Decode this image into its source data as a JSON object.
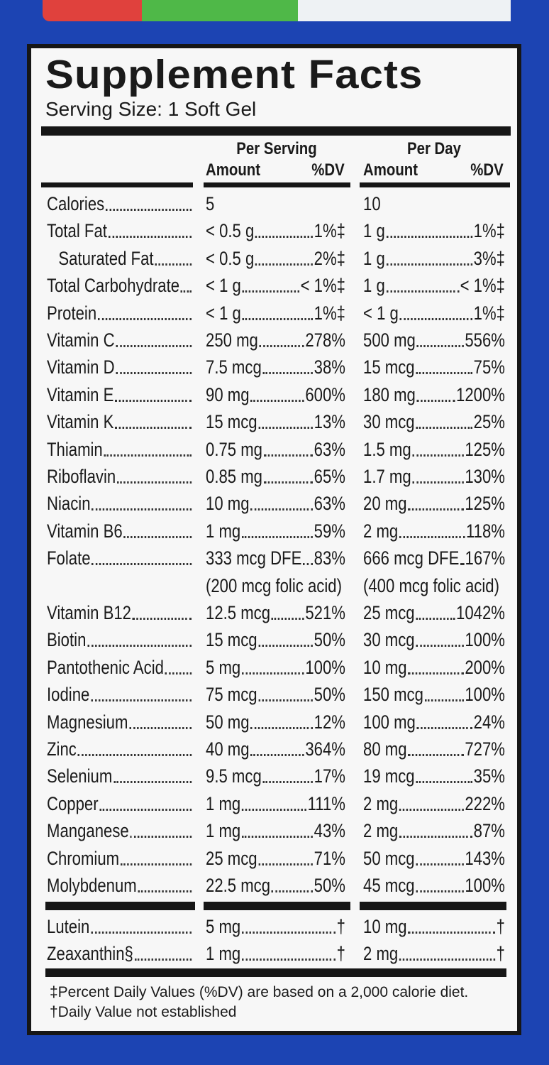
{
  "header": {
    "title": "Supplement Facts",
    "serving_size": "Serving Size: 1 Soft Gel"
  },
  "columns": {
    "per_serving": "Per Serving",
    "per_day": "Per Day",
    "serving_amount": "Amount",
    "serving_dv": "%DV",
    "day_amount": "Amount",
    "day_dv": "%DV"
  },
  "table": {
    "rows": [
      {
        "name": "Calories",
        "serving": {
          "amount": "5"
        },
        "day": {
          "amount": "10"
        }
      },
      {
        "name": "Total Fat",
        "serving": {
          "amount": "< 0.5 g",
          "dv": "1%‡"
        },
        "day": {
          "amount": "1 g",
          "dv": "1%‡"
        }
      },
      {
        "name": "Saturated Fat",
        "serving": {
          "amount": "< 0.5 g",
          "dv": "2%‡"
        },
        "day": {
          "amount": "1 g",
          "dv": "3%‡"
        }
      },
      {
        "name": "Total Carbohydrate",
        "serving": {
          "amount": "< 1 g",
          "dv": "< 1%‡"
        },
        "day": {
          "amount": "1 g",
          "dv": "< 1%‡"
        }
      },
      {
        "name": "Protein",
        "serving": {
          "amount": "< 1 g",
          "dv": "1%‡"
        },
        "day": {
          "amount": "< 1 g",
          "dv": "1%‡"
        }
      },
      {
        "name": "Vitamin C",
        "serving": {
          "amount": "250 mg",
          "dv": "278%"
        },
        "day": {
          "amount": "500 mg",
          "dv": "556%"
        }
      },
      {
        "name": "Vitamin D",
        "serving": {
          "amount": "7.5 mcg",
          "dv": "38%"
        },
        "day": {
          "amount": "15 mcg",
          "dv": "75%"
        }
      },
      {
        "name": "Vitamin E",
        "serving": {
          "amount": "90 mg",
          "dv": "600%"
        },
        "day": {
          "amount": "180 mg",
          "dv": "1200%"
        }
      },
      {
        "name": "Vitamin K",
        "serving": {
          "amount": "15 mcg",
          "dv": "13%"
        },
        "day": {
          "amount": "30 mcg",
          "dv": "25%"
        }
      },
      {
        "name": "Thiamin",
        "serving": {
          "amount": "0.75 mg",
          "dv": "63%"
        },
        "day": {
          "amount": "1.5 mg",
          "dv": "125%"
        }
      },
      {
        "name": "Riboflavin",
        "serving": {
          "amount": "0.85 mg",
          "dv": "65%"
        },
        "day": {
          "amount": "1.7 mg",
          "dv": "130%"
        }
      },
      {
        "name": "Niacin",
        "serving": {
          "amount": "10 mg",
          "dv": "63%"
        },
        "day": {
          "amount": "20 mg",
          "dv": "125%"
        }
      },
      {
        "name": "Vitamin B6",
        "serving": {
          "amount": "1 mg",
          "dv": "59%"
        },
        "day": {
          "amount": "2 mg",
          "dv": "118%"
        }
      },
      {
        "name": "Folate",
        "serving": {
          "amount": "333 mcg DFE",
          "dv": "83%",
          "note": "(200 mcg folic acid)"
        },
        "day": {
          "amount": "666 mcg DFE",
          "dv": "167%",
          "note": "(400 mcg folic acid)"
        }
      },
      {
        "name": "Vitamin B12",
        "serving": {
          "amount": "12.5 mcg",
          "dv": "521%"
        },
        "day": {
          "amount": "25 mcg",
          "dv": "1042%"
        }
      },
      {
        "name": "Biotin",
        "serving": {
          "amount": "15 mcg",
          "dv": "50%"
        },
        "day": {
          "amount": "30 mcg",
          "dv": "100%"
        }
      },
      {
        "name": "Pantothenic Acid",
        "serving": {
          "amount": "5 mg",
          "dv": "100%"
        },
        "day": {
          "amount": "10 mg",
          "dv": "200%"
        }
      },
      {
        "name": "Iodine",
        "serving": {
          "amount": "75 mcg",
          "dv": "50%"
        },
        "day": {
          "amount": "150 mcg",
          "dv": "100%"
        }
      },
      {
        "name": "Magnesium",
        "serving": {
          "amount": "50 mg",
          "dv": "12%"
        },
        "day": {
          "amount": "100 mg",
          "dv": "24%"
        }
      },
      {
        "name": "Zinc",
        "serving": {
          "amount": "40 mg",
          "dv": "364%"
        },
        "day": {
          "amount": "80 mg",
          "dv": "727%"
        }
      },
      {
        "name": "Selenium",
        "serving": {
          "amount": "9.5 mcg",
          "dv": "17%"
        },
        "day": {
          "amount": "19 mcg",
          "dv": "35%"
        }
      },
      {
        "name": "Copper",
        "serving": {
          "amount": "1 mg",
          "dv": "111%"
        },
        "day": {
          "amount": "2 mg",
          "dv": "222%"
        }
      },
      {
        "name": "Manganese",
        "serving": {
          "amount": "1 mg",
          "dv": "43%"
        },
        "day": {
          "amount": "2 mg",
          "dv": "87%"
        }
      },
      {
        "name": "Chromium",
        "serving": {
          "amount": "25 mcg",
          "dv": "71%"
        },
        "day": {
          "amount": "50 mcg",
          "dv": "143%"
        }
      },
      {
        "name": "Molybdenum",
        "serving": {
          "amount": "22.5 mcg",
          "dv": "50%"
        },
        "day": {
          "amount": "45 mcg",
          "dv": "100%"
        }
      }
    ],
    "other_rows": [
      {
        "name": "Lutein",
        "serving": {
          "amount": "5 mg",
          "dv": "†"
        },
        "day": {
          "amount": "10 mg",
          "dv": "†"
        }
      },
      {
        "name": "Zeaxanthin§",
        "serving": {
          "amount": "1 mg",
          "dv": "†"
        },
        "day": {
          "amount": "2 mg",
          "dv": "†"
        }
      }
    ]
  },
  "footnotes": [
    "‡Percent Daily Values (%DV) are based on a 2,000 calorie diet.",
    "†Daily Value not established"
  ]
}
